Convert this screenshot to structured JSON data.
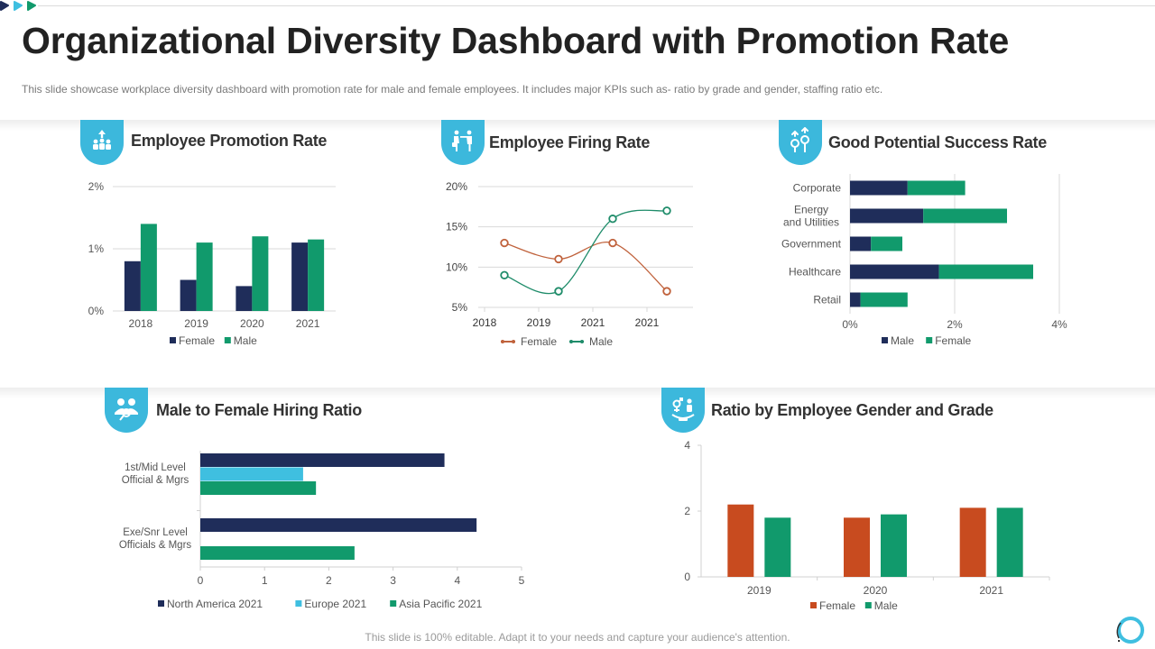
{
  "header": {
    "title": "Organizational Diversity Dashboard with Promotion Rate",
    "subtitle": "This slide showcase workplace diversity dashboard  with promotion rate for male and female  employees. It includes major KPIs such as- ratio by grade  and gender,  staffing ratio etc."
  },
  "footer": {
    "text": "This slide is 100% editable. Adapt it to your needs and capture your audience's attention."
  },
  "colors": {
    "navy": "#1f2d5a",
    "green": "#119a6c",
    "orange": "#c84b1f",
    "lightblue": "#3fbfe0",
    "badge": "#3cb8dc",
    "female_line": "#c0623c",
    "male_line": "#1f8c6a"
  },
  "panels": {
    "promotion": {
      "title": "Employee Promotion Rate",
      "icon": "people-promotion-icon"
    },
    "firing": {
      "title": "Employee Firing Rate",
      "icon": "person-dismissal-icon"
    },
    "potential": {
      "title": "Good Potential Success Rate",
      "icon": "gear-growth-icon"
    },
    "hiring": {
      "title": "Male to Female Hiring Ratio",
      "icon": "people-search-icon"
    },
    "grade": {
      "title": "Ratio by Employee Gender and Grade",
      "icon": "gender-symbol-icon"
    }
  },
  "chart_data": [
    {
      "id": "promotion",
      "type": "bar",
      "title": "Employee Promotion Rate",
      "categories": [
        "2018",
        "2019",
        "2020",
        "2021"
      ],
      "series": [
        {
          "name": "Female",
          "color": "#1f2d5a",
          "values": [
            0.8,
            0.5,
            0.4,
            1.1
          ]
        },
        {
          "name": "Male",
          "color": "#119a6c",
          "values": [
            1.4,
            1.1,
            1.2,
            1.15
          ]
        }
      ],
      "ylim": [
        0,
        2
      ],
      "yticks": [
        "0%",
        "1%",
        "2%"
      ],
      "unit": "%",
      "grid": true,
      "legend": "bottom"
    },
    {
      "id": "firing",
      "type": "line",
      "title": "Employee Firing Rate",
      "categories": [
        "2018",
        "2019",
        "2021",
        "2021"
      ],
      "series": [
        {
          "name": "Female",
          "color": "#c0623c",
          "values": [
            13,
            11,
            13,
            7
          ]
        },
        {
          "name": "Male",
          "color": "#1f8c6a",
          "values": [
            9,
            7,
            16,
            17
          ]
        }
      ],
      "ylim": [
        5,
        20
      ],
      "yticks": [
        "5%",
        "10%",
        "15%",
        "20%"
      ],
      "unit": "%",
      "grid": true,
      "smooth": true,
      "legend": "bottom"
    },
    {
      "id": "potential",
      "type": "bar",
      "orientation": "horizontal",
      "stacked": true,
      "title": "Good Potential Success Rate",
      "categories": [
        "Corporate",
        "Energy and Utilities",
        "Government",
        "Healthcare",
        "Retail"
      ],
      "series": [
        {
          "name": "Male",
          "color": "#1f2d5a",
          "values": [
            1.1,
            1.4,
            0.4,
            1.7,
            0.2
          ]
        },
        {
          "name": "Female",
          "color": "#119a6c",
          "values": [
            1.1,
            1.6,
            0.6,
            1.8,
            0.9
          ]
        }
      ],
      "xlim": [
        0,
        4
      ],
      "xticks": [
        "0%",
        "2%",
        "4%"
      ],
      "unit": "%",
      "grid": true,
      "legend": "bottom"
    },
    {
      "id": "hiring",
      "type": "bar",
      "orientation": "horizontal",
      "title": "Male to Female Hiring Ratio",
      "categories": [
        "1st/Mid Level Official & Mgrs",
        "Exe/Snr Level Officials & Mgrs"
      ],
      "series": [
        {
          "name": "North America 2021",
          "color": "#1f2d5a",
          "values": [
            3.8,
            4.3
          ]
        },
        {
          "name": "Europe 2021",
          "color": "#3fbfe0",
          "values": [
            1.6,
            0
          ]
        },
        {
          "name": "Asia Pacific 2021",
          "color": "#119a6c",
          "values": [
            1.8,
            2.4
          ]
        }
      ],
      "xlim": [
        0,
        5
      ],
      "xticks": [
        "0",
        "1",
        "2",
        "3",
        "4",
        "5"
      ],
      "grid": false,
      "legend": "bottom"
    },
    {
      "id": "grade",
      "type": "bar",
      "title": "Ratio by Employee Gender and Grade",
      "categories": [
        "2019",
        "2020",
        "2021"
      ],
      "series": [
        {
          "name": "Female",
          "color": "#c84b1f",
          "values": [
            2.2,
            1.8,
            2.1
          ]
        },
        {
          "name": "Male",
          "color": "#119a6c",
          "values": [
            1.8,
            1.9,
            2.1
          ]
        }
      ],
      "ylim": [
        0,
        4
      ],
      "yticks": [
        "0",
        "2",
        "4"
      ],
      "grid": false,
      "legend": "bottom"
    }
  ]
}
